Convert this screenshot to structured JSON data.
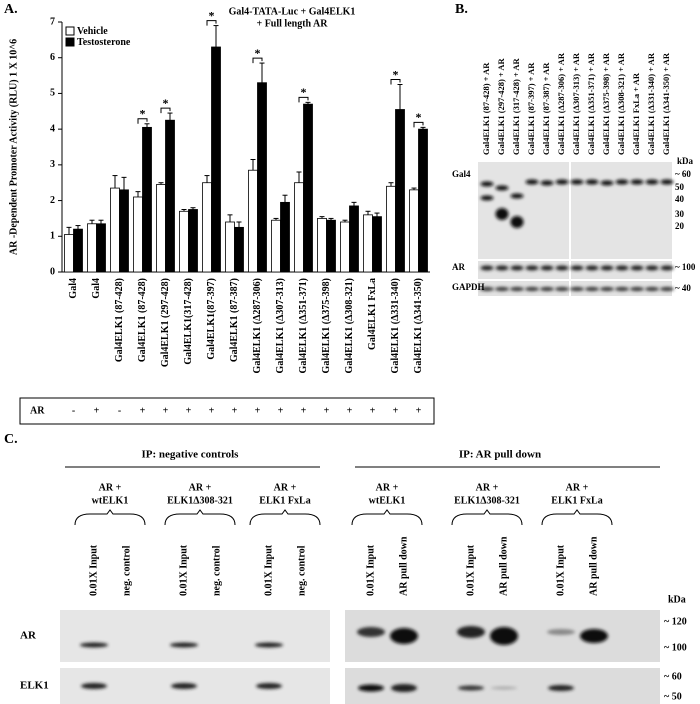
{
  "chart_data": {
    "type": "bar",
    "panel_label": "A.",
    "title_lines": [
      "Gal4-TATA-Luc + Gal4ELK1",
      "+ Full length AR"
    ],
    "y_label": "AR -Dependent Promoter Activity (RLU) 1 X 10^6",
    "categories": [
      "Gal4",
      "Gal4",
      "Gal4ELK1 (87-428)",
      "Gal4ELK1 (87-428)",
      "Gal4ELK1 (297-428)",
      "Gal4ELK1(317-428)",
      "Gal4ELK1(87-397)",
      "Gal4ELK1 (87-387)",
      "Gal4ELK1 (Δ287-306)",
      "Gal4ELK1 (Δ307-313)",
      "Gal4ELK1 (Δ351-371)",
      "Gal4ELK1 (Δ375-398)",
      "Gal4ELK1 (Δ308-321)",
      "Gal4ELK1 FxLa",
      "Gal4ELK1 (Δ331-340)",
      "Gal4ELK1 (Δ341-350)"
    ],
    "series": [
      {
        "name": "Vehicle",
        "color": "#ffffff",
        "values": [
          1.05,
          1.35,
          2.35,
          2.1,
          2.45,
          1.7,
          2.5,
          1.4,
          2.85,
          1.45,
          2.5,
          1.5,
          1.4,
          1.6,
          2.4,
          2.3
        ],
        "errors": [
          0.2,
          0.1,
          0.35,
          0.15,
          0.05,
          0.05,
          0.2,
          0.2,
          0.3,
          0.05,
          0.3,
          0.05,
          0.05,
          0.1,
          0.1,
          0.05
        ]
      },
      {
        "name": "Testosterone",
        "color": "#000000",
        "values": [
          1.2,
          1.35,
          2.3,
          4.05,
          4.25,
          1.75,
          6.3,
          1.25,
          5.3,
          1.95,
          4.7,
          1.45,
          1.85,
          1.55,
          4.55,
          4.0
        ],
        "errors": [
          0.1,
          0.1,
          0.35,
          0.1,
          0.2,
          0.05,
          0.6,
          0.15,
          0.55,
          0.2,
          0.05,
          0.05,
          0.1,
          0.1,
          0.7,
          0.05
        ]
      }
    ],
    "significance": [
      null,
      null,
      null,
      "*",
      "*",
      null,
      "*",
      null,
      "*",
      null,
      "*",
      null,
      null,
      null,
      "*",
      "*"
    ],
    "ylim": [
      0,
      7
    ],
    "yticks": [
      0,
      1,
      2,
      3,
      4,
      5,
      6,
      7
    ],
    "row_label": "AR",
    "row_values": [
      "-",
      "+",
      "-",
      "+",
      "+",
      "+",
      "+",
      "+",
      "+",
      "+",
      "+",
      "+",
      "+",
      "+",
      "+",
      "+"
    ]
  },
  "panel_b": {
    "panel_label": "B.",
    "lanes": [
      "Gal4ELK1 (87-428) + AR",
      "Gal4ELK1 (297-428) + AR",
      "Gal4ELK1 (317-428) + AR",
      "Gal4ELK1 (87-397) + AR",
      "Gal4ELK1 (87-387) + AR",
      "Gal4ELK1 (Δ287-306) + AR",
      "Gal4ELK1 (Δ307-313) + AR",
      "Gal4ELK1 (Δ351-371) + AR",
      "Gal4ELK1 (Δ375-398) + AR",
      "Gal4ELK1 (Δ308-321) + AR",
      "Gal4ELK1 FxLa + AR",
      "Gal4ELK1 (Δ331-340) + AR",
      "Gal4ELK1 (Δ341-350) + AR"
    ],
    "rows": [
      "Gal4",
      "AR",
      "GAPDH"
    ],
    "kda_label": "kDa",
    "markers": [
      "~ 60",
      "50",
      "40",
      "30",
      "20",
      "~ 100",
      "~ 40"
    ]
  },
  "panel_c": {
    "panel_label": "C.",
    "groups": [
      {
        "title": "IP: negative controls",
        "samples": [
          {
            "lines": [
              "AR +",
              "wtELK1"
            ],
            "lanes": [
              "0.01X Input",
              "neg. control"
            ]
          },
          {
            "lines": [
              "AR +",
              "ELK1Δ308-321"
            ],
            "lanes": [
              "0.01X Input",
              "neg. control"
            ]
          },
          {
            "lines": [
              "AR +",
              "ELK1  FxLa"
            ],
            "lanes": [
              "0.01X Input",
              "neg. control"
            ]
          }
        ]
      },
      {
        "title": "IP: AR pull down",
        "samples": [
          {
            "lines": [
              "AR +",
              "wtELK1"
            ],
            "lanes": [
              "0.01X Input",
              "AR pull down"
            ]
          },
          {
            "lines": [
              "AR +",
              "ELK1Δ308-321"
            ],
            "lanes": [
              "0.01X Input",
              "AR pull down"
            ]
          },
          {
            "lines": [
              "AR +",
              "ELK1  FxLa"
            ],
            "lanes": [
              "0.01X Input",
              "AR pull down"
            ]
          }
        ]
      }
    ],
    "rows": [
      "AR",
      "ELK1"
    ],
    "kda_label": "kDa",
    "markers": [
      "~ 120",
      "~ 100",
      "~ 60",
      "~ 50"
    ]
  }
}
